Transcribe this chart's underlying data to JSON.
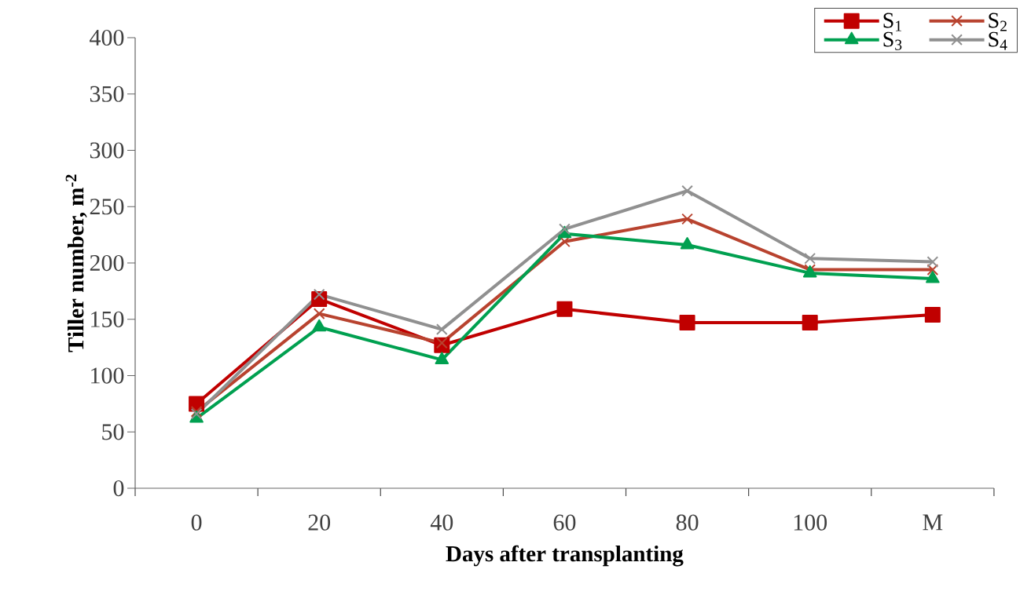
{
  "chart_data": {
    "type": "line",
    "xlabel": "Days after transplanting",
    "ylabel": "Tiller number, m$^{-2}$",
    "categories": [
      "0",
      "20",
      "40",
      "60",
      "80",
      "100",
      "M"
    ],
    "series": [
      {
        "name": "S$_{1}$",
        "color": "#c00000",
        "marker": "square",
        "values": [
          75,
          168,
          127,
          159,
          147,
          147,
          154
        ]
      },
      {
        "name": "S$_{2}$",
        "color": "#b8432f",
        "marker": "cross",
        "values": [
          68,
          155,
          129,
          219,
          239,
          194,
          194
        ]
      },
      {
        "name": "S$_{3}$",
        "color": "#00a050",
        "marker": "triangle",
        "values": [
          62,
          143,
          114,
          226,
          216,
          191,
          186
        ]
      },
      {
        "name": "S$_{4}$",
        "color": "#909090",
        "marker": "cross",
        "values": [
          66,
          172,
          141,
          230,
          264,
          204,
          201
        ]
      }
    ],
    "ylim": [
      0,
      400
    ],
    "yticks": [
      0,
      50,
      100,
      150,
      200,
      250,
      300,
      350,
      400
    ],
    "grid": false,
    "legend": "top right",
    "line_style": "solid"
  }
}
